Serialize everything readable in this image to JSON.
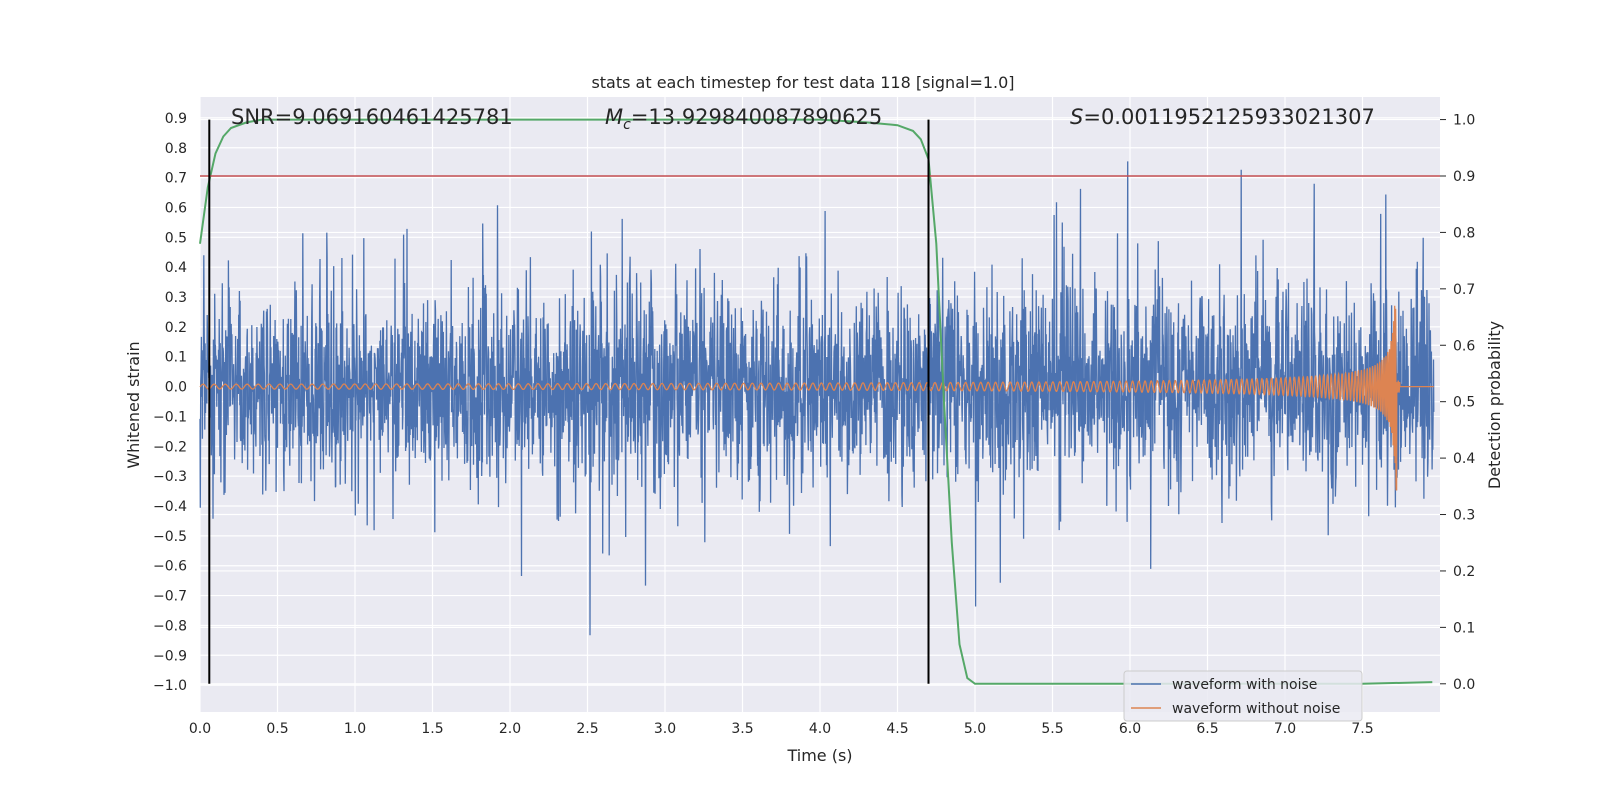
{
  "chart_data": {
    "type": "line",
    "title": "stats at each timestep for test data 118 [signal=1.0]",
    "xlabel": "Time (s)",
    "ylabel": "Whitened strain",
    "ylabel_right": "Detection probability",
    "xlim": [
      0.0,
      8.0
    ],
    "ylim": [
      -1.09,
      0.97
    ],
    "ylim_right": [
      -0.05,
      1.04
    ],
    "x_ticks": [
      "0.0",
      "0.5",
      "1.0",
      "1.5",
      "2.0",
      "2.5",
      "3.0",
      "3.5",
      "4.0",
      "4.5",
      "5.0",
      "5.5",
      "6.0",
      "6.5",
      "7.0",
      "7.5"
    ],
    "y_ticks": [
      "0.9",
      "0.8",
      "0.7",
      "0.6",
      "0.5",
      "0.4",
      "0.3",
      "0.2",
      "0.1",
      "0.0",
      "−0.1",
      "−0.2",
      "−0.3",
      "−0.4",
      "−0.5",
      "−0.6",
      "−0.7",
      "−0.8",
      "−0.9",
      "−1.0"
    ],
    "y2_ticks": [
      "1.0",
      "0.9",
      "0.8",
      "0.7",
      "0.6",
      "0.5",
      "0.4",
      "0.3",
      "0.2",
      "0.1",
      "0.0"
    ],
    "grid": true,
    "annotations": {
      "snr": "SNR=9.069160461425781",
      "mc_symbol": "M",
      "mc_sub": "c",
      "mc_value": "=13.929840087890625",
      "s_symbol": "S",
      "s_value": "=0.0011952125933021307"
    },
    "vertical_lines_x": [
      0.06,
      4.7
    ],
    "threshold_y_right": 0.9,
    "series": [
      {
        "name": "waveform with noise",
        "color": "#4c72b0",
        "description_points": "dense noise trace, roughly within -0.65..0.75, sampled procedurally"
      },
      {
        "name": "waveform without noise",
        "color": "#dd8452",
        "chirp": {
          "t_merge": 7.72,
          "amp_start": 0.008,
          "amp_peak": 0.35,
          "amp_min_peak": -0.37
        }
      },
      {
        "color": "#55a868",
        "axis": "right",
        "x": [
          0.0,
          0.05,
          0.1,
          0.15,
          0.2,
          0.3,
          0.4,
          0.6,
          1.0,
          2.0,
          3.0,
          4.0,
          4.3,
          4.5,
          4.6,
          4.65,
          4.7,
          4.75,
          4.8,
          4.85,
          4.9,
          4.95,
          5.0,
          5.2,
          6.0,
          7.0,
          7.5,
          7.95
        ],
        "y": [
          0.78,
          0.88,
          0.94,
          0.97,
          0.985,
          0.995,
          1.0,
          1.0,
          1.0,
          1.0,
          1.0,
          1.0,
          0.995,
          0.99,
          0.98,
          0.965,
          0.93,
          0.78,
          0.5,
          0.25,
          0.07,
          0.01,
          0.0,
          0.0,
          0.0,
          0.0,
          0.0,
          0.003
        ]
      }
    ],
    "legend": {
      "placement": "lower-right",
      "entries": [
        "waveform with noise",
        "waveform without noise"
      ]
    },
    "colors": {
      "axes_bg": "#eaeaf2",
      "grid": "#ffffff",
      "threshold": "#c44e52",
      "vline": "#000000"
    }
  }
}
